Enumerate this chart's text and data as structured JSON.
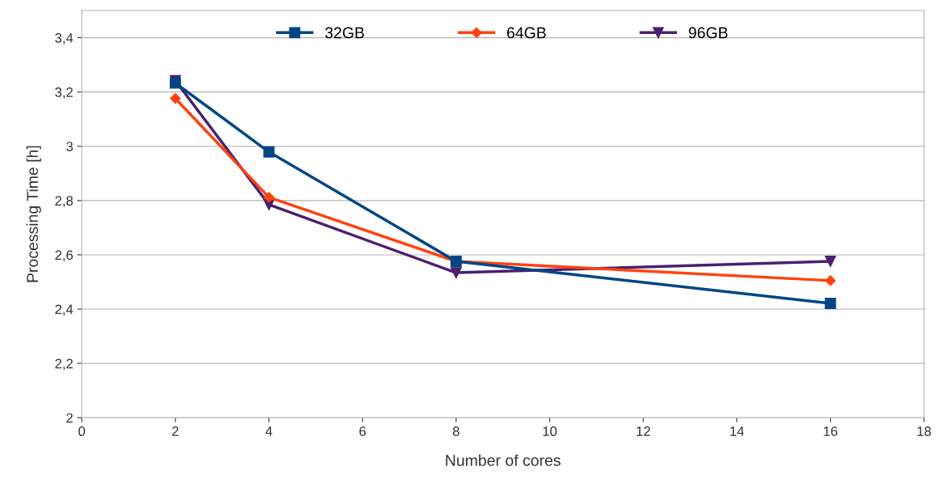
{
  "chart_data": {
    "type": "line",
    "xlabel": "Number of cores",
    "ylabel": "Processing Time [h]",
    "x": [
      2,
      4,
      8,
      16
    ],
    "series": [
      {
        "name": "32GB",
        "color": "#004586",
        "marker": "square",
        "values": [
          3.233,
          2.979,
          2.576,
          2.421
        ]
      },
      {
        "name": "64GB",
        "color": "#ff420e",
        "marker": "diamond",
        "values": [
          3.176,
          2.812,
          2.576,
          2.505
        ]
      },
      {
        "name": "96GB",
        "color": "#4b1f6f",
        "marker": "triangle",
        "values": [
          3.242,
          2.785,
          2.534,
          2.576
        ]
      }
    ],
    "xlim": [
      0,
      18
    ],
    "xticks": [
      0,
      2,
      4,
      6,
      8,
      10,
      12,
      14,
      16,
      18
    ],
    "ylim": [
      2,
      3.5
    ],
    "yticks": [
      2,
      {
        "value": 2.2,
        "label": "2,2"
      },
      {
        "value": 2.4,
        "label": "2,4"
      },
      {
        "value": 2.6,
        "label": "2,6"
      },
      {
        "value": 2.8,
        "label": "2,8"
      },
      3,
      {
        "value": 3.2,
        "label": "3,2"
      },
      {
        "value": 3.4,
        "label": "3,4"
      }
    ],
    "grid": "y",
    "legend": "top"
  }
}
